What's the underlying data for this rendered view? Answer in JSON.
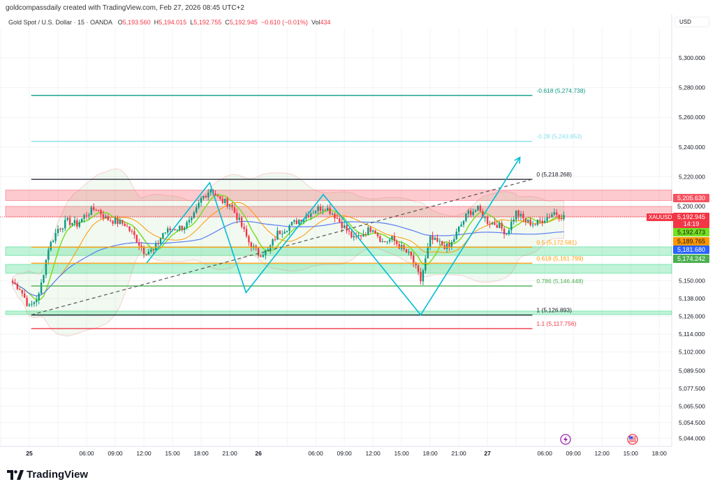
{
  "header": {
    "credit": "goldcompassdaily created with TradingView.com, Feb 27, 2026 08:45 UTC+2",
    "symbol": "Gold Spot / U.S. Dollar · 15 · OANDA",
    "o_label": "O",
    "o": "5,193.560",
    "h_label": "H",
    "h": "5,194.015",
    "l_label": "L",
    "l": "5,192.755",
    "c_label": "C",
    "c": "5,192.945",
    "change": "−0.610 (−0.01%)",
    "vol_label": "Vol",
    "vol": "434"
  },
  "axis": {
    "currency": "USD",
    "symbol_tag": "XAUUSD",
    "countdown": "14:19"
  },
  "badges": [
    {
      "value": "5,205.630",
      "color": "#f7525f"
    },
    {
      "value": "5,200.000",
      "color": "none"
    },
    {
      "value": "5,192.945",
      "color": "#f23645"
    },
    {
      "value": "5,192.473",
      "color": "#76e021"
    },
    {
      "value": "5,189.765",
      "color": "#ff9800"
    },
    {
      "value": "5,181.680",
      "color": "#2962ff"
    },
    {
      "value": "5,174.242",
      "color": "#4caf50"
    }
  ],
  "logo": "TradingView",
  "icons": [
    "lightning-event-icon",
    "us-flag-event-icon"
  ],
  "chart_data": {
    "type": "candlestick",
    "y_ticks": [
      "5,300.000",
      "5,280.000",
      "5,260.000",
      "5,240.000",
      "5,220.000",
      "5,150.000",
      "5,138.000",
      "5,126.000",
      "5,114.000",
      "5,102.000",
      "5,089.500",
      "5,077.500",
      "5,065.500",
      "5,054.500",
      "5,044.000"
    ],
    "y_tick_values": [
      5300,
      5280,
      5260,
      5240,
      5220,
      5150,
      5138,
      5126,
      5114,
      5102,
      5089.5,
      5077.5,
      5065.5,
      5054.5,
      5044
    ],
    "x_ticks": [
      {
        "h": 0,
        "label": "25",
        "bold": true
      },
      {
        "h": 6,
        "label": "06:00"
      },
      {
        "h": 9,
        "label": "09:00"
      },
      {
        "h": 12,
        "label": "12:00"
      },
      {
        "h": 15,
        "label": "15:00"
      },
      {
        "h": 18,
        "label": "18:00"
      },
      {
        "h": 21,
        "label": "21:00"
      },
      {
        "h": 24,
        "label": "26",
        "bold": true
      },
      {
        "h": 30,
        "label": "06:00"
      },
      {
        "h": 33,
        "label": "09:00"
      },
      {
        "h": 36,
        "label": "12:00"
      },
      {
        "h": 39,
        "label": "15:00"
      },
      {
        "h": 42,
        "label": "18:00"
      },
      {
        "h": 45,
        "label": "21:00"
      },
      {
        "h": 48,
        "label": "27",
        "bold": true
      },
      {
        "h": 54,
        "label": "06:00"
      },
      {
        "h": 57,
        "label": "09:00"
      },
      {
        "h": 60,
        "label": "12:00"
      },
      {
        "h": 63,
        "label": "15:00"
      },
      {
        "h": 66,
        "label": "18:00"
      }
    ],
    "hourly_close_start_hour": -2,
    "hourly_close": [
      5150,
      5145,
      5132,
      5140,
      5172,
      5185,
      5190,
      5188,
      5195,
      5199,
      5192,
      5190,
      5188,
      5180,
      5170,
      5170,
      5182,
      5185,
      5186,
      5190,
      5205,
      5212,
      5204,
      5202,
      5190,
      5176,
      5168,
      5170,
      5182,
      5186,
      5190,
      5194,
      5198,
      5200,
      5194,
      5186,
      5178,
      5182,
      5186,
      5176,
      5178,
      5172,
      5166,
      5150,
      5178,
      5175,
      5172,
      5185,
      5196,
      5198,
      5190,
      5188,
      5182,
      5196,
      5190,
      5188,
      5192,
      5196,
      5193
    ],
    "fib": {
      "from_hour": 0.2,
      "to_hour": 52.7,
      "levels": [
        {
          "label": "-0.618 (5,274.738)",
          "price": 5274.738,
          "color": "#089981"
        },
        {
          "label": "-0.28 (5,243.853)",
          "price": 5243.853,
          "color": "#80deea"
        },
        {
          "label": "0 (5,218.268)",
          "price": 5218.268,
          "color": "#131722"
        },
        {
          "label": "0.5 (5,172.581)",
          "price": 5172.581,
          "color": "#ff9800"
        },
        {
          "label": "0.618 (5,161.799)",
          "price": 5161.799,
          "color": "#ff9800"
        },
        {
          "label": "0.786 (5,146.448)",
          "price": 5146.448,
          "color": "#4caf50"
        },
        {
          "label": "1 (5,126.893)",
          "price": 5126.893,
          "color": "#131722"
        },
        {
          "label": "1.1 (5,117.756)",
          "price": 5117.756,
          "color": "#f23645"
        }
      ]
    },
    "zones": [
      {
        "from": 5204,
        "to": 5211,
        "color": "#f7525f"
      },
      {
        "from": 5193,
        "to": 5200,
        "color": "#f7525f"
      },
      {
        "from": 5167,
        "to": 5172.8,
        "color": "#2fd67f"
      },
      {
        "from": 5155,
        "to": 5161,
        "color": "#2fd67f"
      },
      {
        "from": 5127.2,
        "to": 5129.6,
        "color": "#2fd67f"
      }
    ],
    "zigzag": [
      [
        12.3,
        5162
      ],
      [
        18.9,
        5216
      ],
      [
        22.7,
        5142
      ],
      [
        30.8,
        5208
      ],
      [
        41,
        5127
      ],
      [
        51.4,
        5233
      ]
    ],
    "trendline": [
      [
        0.2,
        5127
      ],
      [
        52.5,
        5218
      ]
    ],
    "colors": {
      "up": "#089981",
      "down": "#f23645",
      "ma_fast": "#76e021",
      "ma_mid": "#ff9800",
      "ma_slow": "#5b7cf0",
      "zigzag": "#00bcd4"
    }
  }
}
